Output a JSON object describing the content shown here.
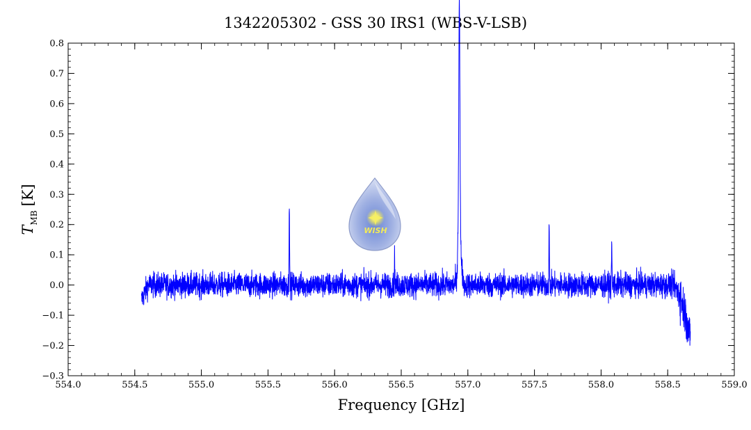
{
  "chart_data": {
    "type": "line",
    "title": "1342205302 - GSS 30 IRS1 (WBS-V-LSB)",
    "xlabel": "Frequency [GHz]",
    "ylabel": {
      "symbol": "T",
      "subscript": "MB",
      "unit": "[K]"
    },
    "xlim": [
      554.0,
      559.0
    ],
    "ylim": [
      -0.3,
      0.8
    ],
    "x_ticks": [
      554.0,
      554.5,
      555.0,
      555.5,
      556.0,
      556.5,
      557.0,
      557.5,
      558.0,
      558.5,
      559.0
    ],
    "y_ticks": [
      -0.3,
      -0.2,
      -0.1,
      0.0,
      0.1,
      0.2,
      0.3,
      0.4,
      0.5,
      0.6,
      0.7,
      0.8
    ],
    "x_tick_labels": [
      "554.0",
      "554.5",
      "555.0",
      "555.5",
      "556.0",
      "556.5",
      "557.0",
      "557.5",
      "558.0",
      "558.5",
      "559.0"
    ],
    "y_tick_labels": [
      "−0.3",
      "−0.2",
      "−0.1",
      "0.0",
      "0.1",
      "0.2",
      "0.3",
      "0.4",
      "0.5",
      "0.6",
      "0.7",
      "0.8"
    ],
    "grid": false,
    "series": [
      {
        "color": "#0000ff",
        "x_range": [
          554.55,
          558.67
        ],
        "baseline_noise": 0.02,
        "features": [
          {
            "x": 554.55,
            "y": -0.05
          },
          {
            "x": 555.66,
            "y": 0.3
          },
          {
            "x": 556.45,
            "y": 0.09
          },
          {
            "x": 556.936,
            "y": 0.75
          },
          {
            "x": 557.61,
            "y": 0.21
          },
          {
            "x": 558.08,
            "y": 0.14
          },
          {
            "x": 558.66,
            "y": -0.18
          }
        ]
      }
    ]
  },
  "logo": {
    "text": "WISH"
  }
}
